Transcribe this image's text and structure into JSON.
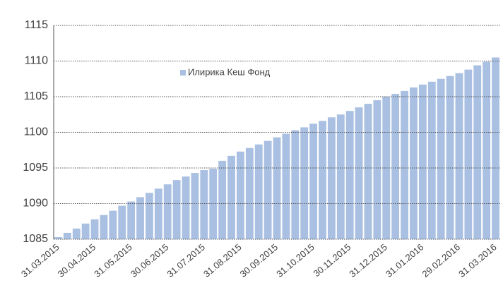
{
  "chart_data": {
    "type": "bar",
    "categories": [
      "31.03.2015",
      null,
      null,
      null,
      "30.04.2015",
      null,
      null,
      null,
      "31.05.2015",
      null,
      null,
      null,
      "30.06.2015",
      null,
      null,
      null,
      "31.07.2015",
      null,
      null,
      null,
      "31.08.2015",
      null,
      null,
      null,
      "30.09.2015",
      null,
      null,
      null,
      "31.10.2015",
      null,
      null,
      null,
      "30.11.2015",
      null,
      null,
      null,
      "31.12.2015",
      null,
      null,
      null,
      "31.01.2016",
      null,
      null,
      null,
      "29.02.2016",
      null,
      null,
      null,
      "31.03.2016"
    ],
    "series": [
      {
        "name": "Илирика Кеш Фонд",
        "color": "#a9c0e2",
        "values": [
          1085.3,
          1085.9,
          1086.5,
          1087.2,
          1087.8,
          1088.4,
          1089.0,
          1089.7,
          1090.3,
          1090.9,
          1091.5,
          1092.1,
          1092.7,
          1093.3,
          1093.8,
          1094.3,
          1094.7,
          1094.9,
          1096.0,
          1096.7,
          1097.3,
          1097.8,
          1098.3,
          1098.8,
          1099.3,
          1099.8,
          1100.3,
          1100.7,
          1101.2,
          1101.6,
          1102.1,
          1102.5,
          1103.0,
          1103.5,
          1104.0,
          1104.5,
          1105.0,
          1105.4,
          1105.8,
          1106.3,
          1106.7,
          1107.1,
          1107.5,
          1107.9,
          1108.3,
          1108.8,
          1109.4,
          1109.9,
          1110.5
        ]
      }
    ],
    "ylim": [
      1085,
      1115
    ],
    "yticks": [
      1085,
      1090,
      1095,
      1100,
      1105,
      1110,
      1115
    ],
    "grid": true,
    "legend": "top-left"
  }
}
